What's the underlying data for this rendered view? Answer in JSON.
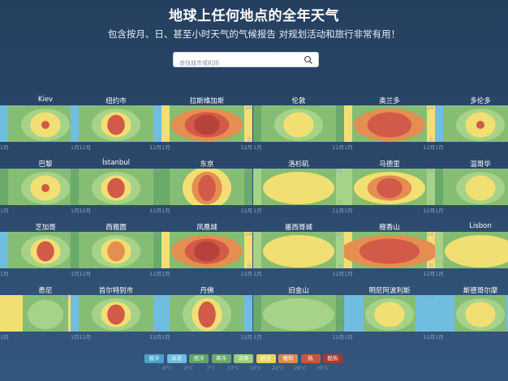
{
  "header": {
    "title": "地球上任何地点的全年天气",
    "subtitle": "包含按月、日、甚至小时天气的气候报告 对规划活动和旅行非常有用！"
  },
  "search": {
    "placeholder": "查找城市或机场",
    "value": ""
  },
  "axis": {
    "hour_top": "24",
    "hour_bottom": "0",
    "month_start": "1月",
    "month_end": "12月"
  },
  "colors": {
    "cold": "#6aa96a",
    "very_cold": "#6fbedf",
    "cool": "#a6d389",
    "comfortable": "#f2df73",
    "warm": "#e58e51",
    "hot": "#d25a48",
    "base_green": "#86bd74"
  },
  "cities": [
    {
      "name": "Kiev",
      "climate": "cold"
    },
    {
      "name": "纽约市",
      "climate": "cold_hot"
    },
    {
      "name": "拉斯维加斯",
      "climate": "desert"
    },
    {
      "name": "伦敦",
      "climate": "mild"
    },
    {
      "name": "奥兰多",
      "climate": "hot_humid"
    },
    {
      "name": "多伦多",
      "climate": "cold"
    },
    {
      "name": "巴黎",
      "climate": "mild_warm"
    },
    {
      "name": "İstanbul",
      "climate": "mild_hot"
    },
    {
      "name": "东京",
      "climate": "temperate_hot"
    },
    {
      "name": "洛杉矶",
      "climate": "mediterranean"
    },
    {
      "name": "马德里",
      "climate": "hot_dry"
    },
    {
      "name": "温哥华",
      "climate": "oceanic"
    },
    {
      "name": "芝加哥",
      "climate": "cold_hot"
    },
    {
      "name": "西雅圖",
      "climate": "oceanic_warm"
    },
    {
      "name": "凤凰城",
      "climate": "desert_hot"
    },
    {
      "name": "墨西哥城",
      "climate": "highland"
    },
    {
      "name": "檀香山",
      "climate": "tropical"
    },
    {
      "name": "Lisbon",
      "climate": "mediterranean"
    },
    {
      "name": "悉尼",
      "climate": "southern_warm"
    },
    {
      "name": "首尔特别市",
      "climate": "cold_hot"
    },
    {
      "name": "丹佛",
      "climate": "cold_dry"
    },
    {
      "name": "旧金山",
      "climate": "cool_ocean"
    },
    {
      "name": "明尼阿波利斯",
      "climate": "very_cold"
    },
    {
      "name": "斯德哥尔摩",
      "climate": "very_cold"
    }
  ],
  "legend": {
    "items": [
      {
        "label": "极冷",
        "color": "#4aa3c8"
      },
      {
        "label": "冰冻",
        "color": "#6fbedf"
      },
      {
        "label": "很冷",
        "color": "#62a46a"
      },
      {
        "label": "寒冷",
        "color": "#6aa96a"
      },
      {
        "label": "凉爽",
        "color": "#9ccd7f"
      },
      {
        "label": "舒适",
        "color": "#e9d35a"
      },
      {
        "label": "暖和",
        "color": "#de8a4b"
      },
      {
        "label": "热",
        "color": "#c8553d"
      },
      {
        "label": "酷热",
        "color": "#a8382f"
      }
    ],
    "temps": [
      "-9°C",
      "0°C",
      "7°C",
      "13°C",
      "18°C",
      "24°C",
      "29°C",
      "35°C"
    ]
  }
}
